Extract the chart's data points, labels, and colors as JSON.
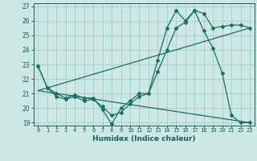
{
  "xlabel": "Humidex (Indice chaleur)",
  "background_color": "#cce8e5",
  "grid_color": "#aad0cc",
  "line_color": "#1a6e64",
  "xlim": [
    -0.5,
    23.5
  ],
  "ylim": [
    18.8,
    27.2
  ],
  "yticks": [
    19,
    20,
    21,
    22,
    23,
    24,
    25,
    26,
    27
  ],
  "xticks": [
    0,
    1,
    2,
    3,
    4,
    5,
    6,
    7,
    8,
    9,
    10,
    11,
    12,
    13,
    14,
    15,
    16,
    17,
    18,
    19,
    20,
    21,
    22,
    23
  ],
  "series1_x": [
    0,
    1,
    2,
    3,
    4,
    5,
    6,
    7,
    8,
    9,
    10,
    11,
    12,
    13,
    14,
    15,
    16,
    17,
    18,
    19,
    20,
    21,
    22,
    23
  ],
  "series1_y": [
    22.9,
    21.4,
    21.0,
    20.7,
    20.9,
    20.7,
    20.7,
    19.9,
    18.9,
    20.0,
    20.5,
    21.0,
    21.0,
    23.3,
    25.5,
    26.7,
    26.0,
    26.7,
    25.3,
    24.1,
    22.4,
    19.5,
    19.0,
    19.0
  ],
  "series2_x": [
    0,
    1,
    2,
    3,
    4,
    5,
    6,
    7,
    8,
    9,
    10,
    11,
    12,
    13,
    14,
    15,
    16,
    17,
    18,
    19,
    20,
    21,
    22,
    23
  ],
  "series2_y": [
    22.9,
    21.4,
    20.8,
    20.6,
    20.8,
    20.5,
    20.6,
    20.1,
    19.5,
    19.7,
    20.3,
    20.8,
    21.0,
    22.5,
    24.0,
    25.5,
    25.9,
    26.7,
    26.5,
    25.5,
    25.6,
    25.7,
    25.7,
    25.5
  ],
  "series3_x": [
    0,
    23
  ],
  "series3_y": [
    21.2,
    19.0
  ],
  "series4_x": [
    0,
    23
  ],
  "series4_y": [
    21.2,
    25.5
  ]
}
